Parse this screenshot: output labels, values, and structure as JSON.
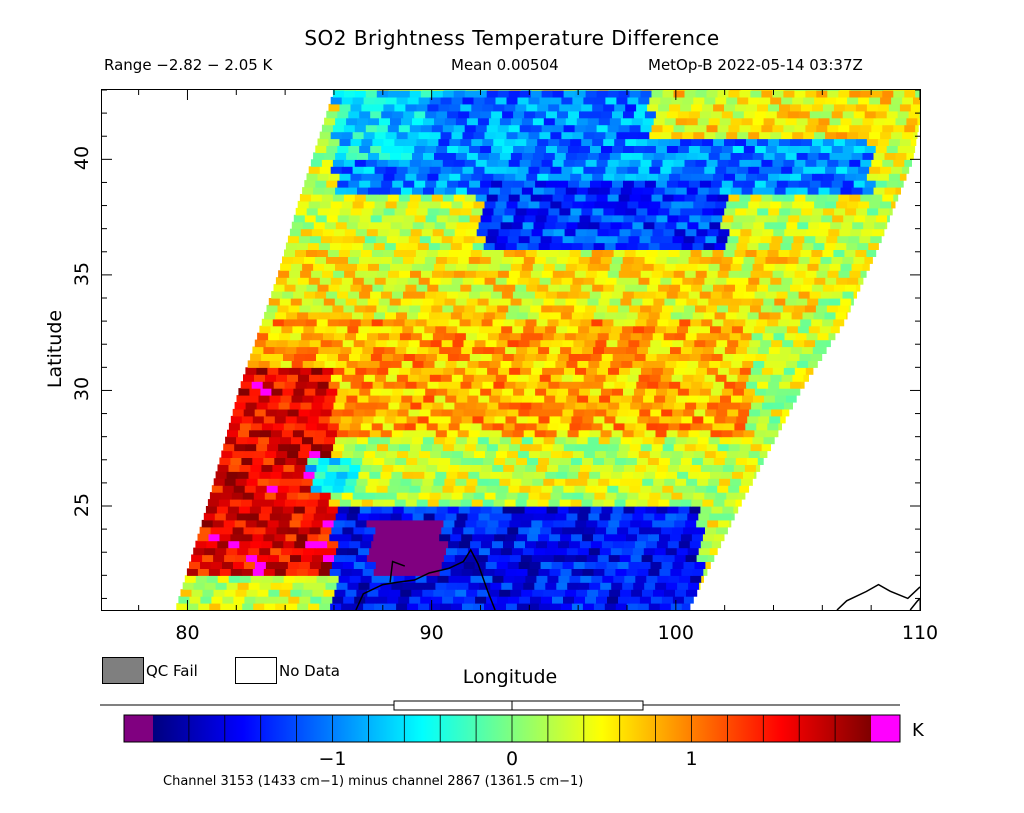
{
  "header": {
    "title": "SO2 Brightness Temperature Difference",
    "range": "Range −2.82 − 2.05 K",
    "mean": "Mean 0.00504",
    "satellite": "MetOp-B 2022-05-14 03:37Z"
  },
  "axes": {
    "xlabel": "Longitude",
    "ylabel": "Latitude",
    "xticks": [
      "80",
      "90",
      "100",
      "110"
    ],
    "yticks": [
      "40",
      "35",
      "30",
      "25"
    ],
    "xlim": [
      76.5,
      110
    ],
    "ylim": [
      20.5,
      43
    ]
  },
  "legend": {
    "qc_fail": "QC Fail",
    "no_data": "No Data",
    "qc_fail_color": "#7f7f7f",
    "no_data_color": "#ffffff"
  },
  "colorbar": {
    "unit": "K",
    "ticks": [
      "−1",
      "0",
      "1"
    ],
    "vmin": -2.0,
    "vmax": 2.0,
    "under_color": "#800080",
    "over_color": "#ff00ff",
    "stops": [
      "#00007f",
      "#0000ff",
      "#007fff",
      "#00ffff",
      "#7fff7f",
      "#ffff00",
      "#ff7f00",
      "#ff0000",
      "#7f0000"
    ],
    "range_indicator": [
      -2.82,
      2.05
    ]
  },
  "footnote": "Channel 3153 (1433 cm−1) minus channel 2867 (1361.5 cm−1)",
  "chart_data": {
    "type": "heatmap",
    "title": "SO2 Brightness Temperature Difference",
    "xlabel": "Longitude",
    "ylabel": "Latitude",
    "xlim": [
      76.5,
      110
    ],
    "ylim": [
      20.5,
      43
    ],
    "swath_left_edge": [
      [
        79.5,
        20.5
      ],
      [
        80.8,
        25
      ],
      [
        82.1,
        30
      ],
      [
        83.7,
        35
      ],
      [
        84.5,
        38
      ],
      [
        85.4,
        41
      ],
      [
        86.0,
        43
      ]
    ],
    "swath_right_edge": [
      [
        100.5,
        20.5
      ],
      [
        102.6,
        25
      ],
      [
        105.1,
        30
      ],
      [
        106.9,
        33
      ],
      [
        108.2,
        36
      ],
      [
        109.7,
        40
      ],
      [
        110,
        41.8
      ]
    ],
    "regions": [
      {
        "lat": [
          38.5,
          43
        ],
        "lon": [
          86,
          108
        ],
        "value": -1.0
      },
      {
        "lat": [
          40,
          43
        ],
        "lon": [
          86,
          90
        ],
        "value": -0.6
      },
      {
        "lat": [
          41,
          43
        ],
        "lon": [
          99,
          110
        ],
        "value": 0.5
      },
      {
        "lat": [
          35,
          39
        ],
        "lon": [
          92,
          102
        ],
        "value": -1.3
      },
      {
        "lat": [
          33,
          36
        ],
        "lon": [
          82,
          106
        ],
        "value": 0.5
      },
      {
        "lat": [
          28,
          33
        ],
        "lon": [
          81,
          103
        ],
        "value": 0.8
      },
      {
        "lat": [
          22,
          31
        ],
        "lon": [
          79,
          86
        ],
        "value": 1.6
      },
      {
        "lat": [
          25.5,
          27
        ],
        "lon": [
          85,
          87
        ],
        "value": -0.5
      },
      {
        "lat": [
          20.5,
          25
        ],
        "lon": [
          86,
          101
        ],
        "value": -1.5
      },
      {
        "lat": [
          22,
          24.5
        ],
        "lon": [
          87.5,
          90.5
        ],
        "value": -2.6
      }
    ],
    "coastline_note": "Bay of Bengal coastline near 87–93E, 20.5–24N; Vietnam coast near 106–110E, 20.5–21.5N"
  }
}
